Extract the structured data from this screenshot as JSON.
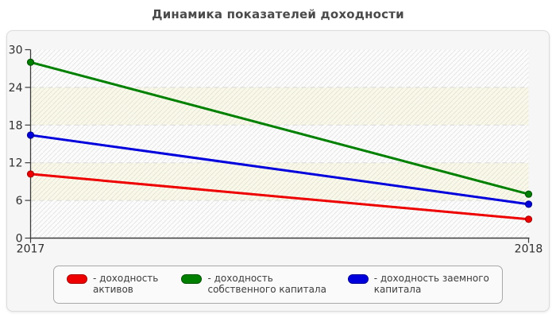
{
  "title": "Динамика показателей доходности",
  "chart_data": {
    "type": "line",
    "x": [
      "2017",
      "2018"
    ],
    "x_tick_labels": [
      "2017",
      "2018"
    ],
    "y_ticks": [
      0,
      6,
      12,
      18,
      24,
      30
    ],
    "ylim": [
      0,
      30
    ],
    "grid": "horizontal-dashed",
    "legend_position": "bottom",
    "series": [
      {
        "name": "доходность активов",
        "legend_label": "- доходность активов",
        "color": "#ee0000",
        "edge": "#aa0000",
        "values": [
          10.2,
          3.0
        ]
      },
      {
        "name": "доходность собственного капитала",
        "legend_label": "- доходность собственного капитала",
        "color": "#008000",
        "edge": "#005200",
        "values": [
          28.0,
          7.0
        ]
      },
      {
        "name": "доходность заемного капитала",
        "legend_label": "- доходность заемного капитала",
        "color": "#0000dd",
        "edge": "#000095",
        "values": [
          16.4,
          5.4
        ]
      }
    ],
    "style": {
      "band_light": "#fcfcfc",
      "band_cream": "#faf9e9",
      "hatch_color": "rgba(175,175,175,0.30)",
      "gridline_color": "#d9d9d9",
      "axis_color": "#3c3c3c"
    }
  }
}
